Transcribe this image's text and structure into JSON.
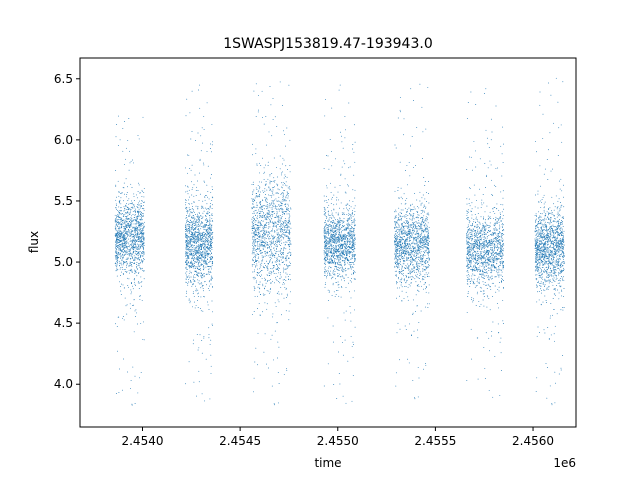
{
  "chart_data": {
    "type": "scatter",
    "title": "1SWASPJ153819.47-193943.0",
    "xlabel": "time",
    "ylabel": "flux",
    "x_offset_label": "1e6",
    "xlim": [
      2453680,
      2456220
    ],
    "ylim": [
      3.65,
      6.67
    ],
    "x_ticks": [
      {
        "value": 2454000,
        "label": "2.4540"
      },
      {
        "value": 2454500,
        "label": "2.4545"
      },
      {
        "value": 2455000,
        "label": "2.4550"
      },
      {
        "value": 2455500,
        "label": "2.4555"
      },
      {
        "value": 2456000,
        "label": "2.4560"
      }
    ],
    "y_ticks": [
      {
        "value": 4.0,
        "label": "4.0"
      },
      {
        "value": 4.5,
        "label": "4.5"
      },
      {
        "value": 5.0,
        "label": "5.0"
      },
      {
        "value": 5.5,
        "label": "5.5"
      },
      {
        "value": 6.0,
        "label": "6.0"
      },
      {
        "value": 6.5,
        "label": "6.5"
      }
    ],
    "grid": false,
    "legend": "none",
    "marker_color": "#1f77b4",
    "seasons": [
      {
        "x_start": 2453860,
        "x_end": 2454010,
        "flux_center": 5.2,
        "flux_spread": 0.15,
        "flux_min": 3.8,
        "flux_max": 6.25
      },
      {
        "x_start": 2454220,
        "x_end": 2454360,
        "flux_center": 5.15,
        "flux_spread": 0.17,
        "flux_min": 3.82,
        "flux_max": 6.48
      },
      {
        "x_start": 2454560,
        "x_end": 2454760,
        "flux_center": 5.25,
        "flux_spread": 0.22,
        "flux_min": 3.8,
        "flux_max": 6.52
      },
      {
        "x_start": 2454930,
        "x_end": 2455090,
        "flux_center": 5.15,
        "flux_spread": 0.14,
        "flux_min": 3.8,
        "flux_max": 6.48
      },
      {
        "x_start": 2455290,
        "x_end": 2455470,
        "flux_center": 5.15,
        "flux_spread": 0.15,
        "flux_min": 3.85,
        "flux_max": 6.5
      },
      {
        "x_start": 2455660,
        "x_end": 2455850,
        "flux_center": 5.1,
        "flux_spread": 0.15,
        "flux_min": 3.85,
        "flux_max": 6.45
      },
      {
        "x_start": 2456010,
        "x_end": 2456160,
        "flux_center": 5.12,
        "flux_spread": 0.15,
        "flux_min": 3.8,
        "flux_max": 6.55
      }
    ]
  }
}
